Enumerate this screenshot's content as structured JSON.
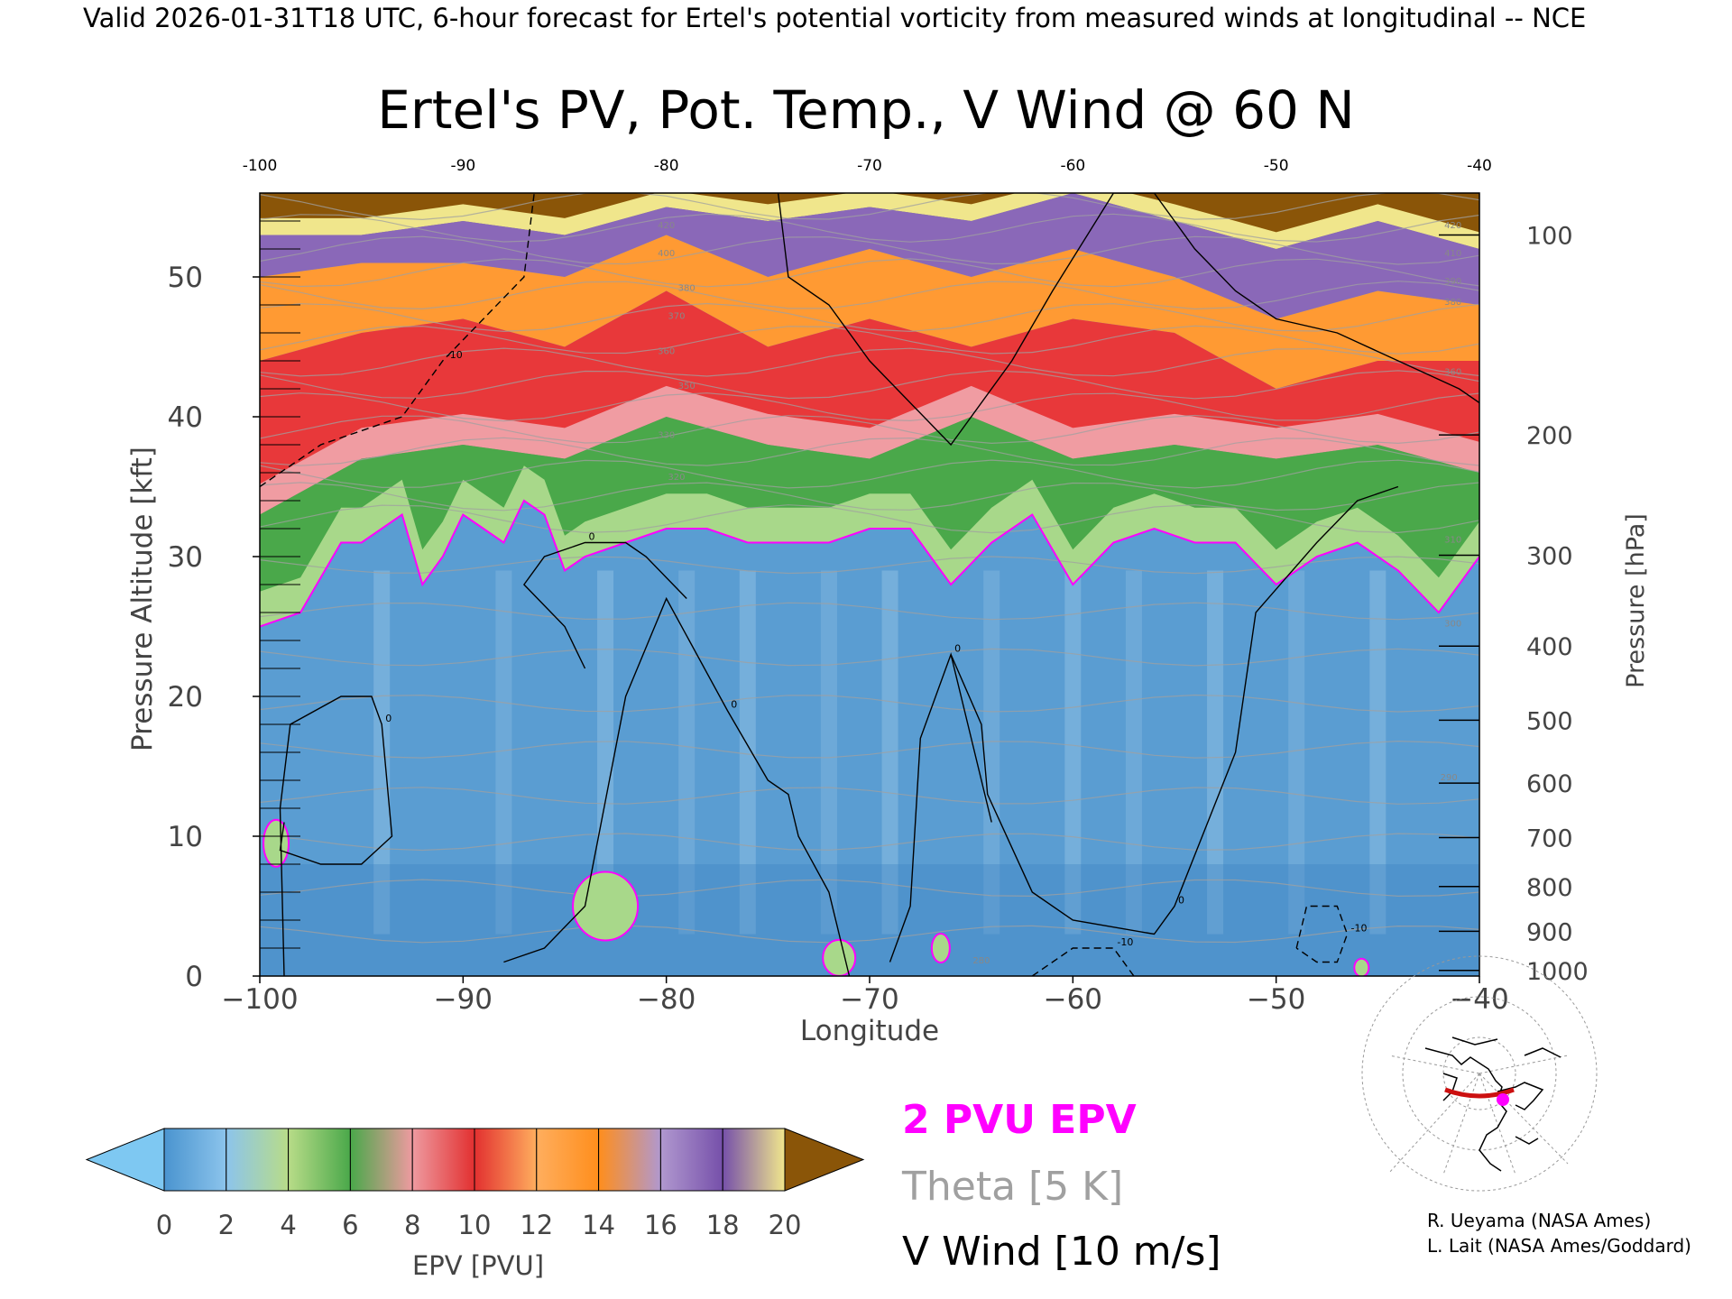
{
  "header_text": "Valid 2026-01-31T18 UTC, 6-hour forecast for Ertel's potential vorticity from measured winds at longitudinal -- NCE",
  "chart_data": {
    "type": "heatmap",
    "title": "Ertel's PV, Pot. Temp., V Wind @ 60 N",
    "xlabel": "Longitude",
    "ylabel": "Pressure Altitude [kft]",
    "y2label": "Pressure [hPa]",
    "xlim": [
      -100,
      -40
    ],
    "ylim": [
      0,
      56
    ],
    "x_ticks": [
      -100,
      -90,
      -80,
      -70,
      -60,
      -50,
      -40
    ],
    "top_x_ticks": [
      -100,
      -90,
      -80,
      -70,
      -60,
      -50,
      -40
    ],
    "y_ticks": [
      0,
      10,
      20,
      30,
      40,
      50
    ],
    "pressure_ticks": [
      {
        "hPa": "100",
        "kft": 53.0
      },
      {
        "hPa": "200",
        "kft": 38.7
      },
      {
        "hPa": "300",
        "kft": 30.1
      },
      {
        "hPa": "400",
        "kft": 23.6
      },
      {
        "hPa": "500",
        "kft": 18.3
      },
      {
        "hPa": "600",
        "kft": 13.8
      },
      {
        "hPa": "700",
        "kft": 9.9
      },
      {
        "hPa": "800",
        "kft": 6.4
      },
      {
        "hPa": "900",
        "kft": 3.2
      },
      {
        "hPa": "1000",
        "kft": 0.4
      }
    ],
    "colorbar": {
      "label": "EPV [PVU]",
      "ticks": [
        0,
        2,
        4,
        6,
        8,
        10,
        12,
        14,
        16,
        18,
        20
      ],
      "colors": [
        "#4a94cf",
        "#8cc4ec",
        "#b8dc88",
        "#4aa84a",
        "#ee9aa0",
        "#e23030",
        "#ffae5e",
        "#ff8e1c",
        "#b098cf",
        "#7650aa",
        "#f0e68c"
      ],
      "under_color": "#7ec8f2",
      "over_color": "#8a5508"
    },
    "legend": [
      {
        "label": "2 PVU EPV",
        "color": "#ff00ff"
      },
      {
        "label": "Theta [5 K]",
        "color": "#a0a0a0"
      },
      {
        "label": "V Wind [10 m/s]",
        "color": "#000000"
      }
    ],
    "tropopause_2pvu_kft": {
      "lon": [
        -100,
        -98,
        -96,
        -95,
        -94,
        -93,
        -92,
        -91,
        -90,
        -89,
        -88,
        -87,
        -86,
        -85,
        -84,
        -82,
        -80,
        -78,
        -76,
        -74,
        -72,
        -70,
        -68,
        -66,
        -64,
        -62,
        -60,
        -58,
        -56,
        -54,
        -52,
        -50,
        -48,
        -46,
        -44,
        -42,
        -40
      ],
      "alt": [
        25,
        26,
        31,
        31,
        32,
        33,
        28,
        30,
        33,
        32,
        31,
        34,
        33,
        29,
        30,
        31,
        32,
        32,
        31,
        31,
        31,
        32,
        32,
        28,
        31,
        33,
        28,
        31,
        32,
        31,
        31,
        28,
        30,
        31,
        29,
        26,
        30
      ]
    },
    "epv_bands_kft": {
      "lon": [
        -100,
        -95,
        -90,
        -85,
        -80,
        -75,
        -70,
        -65,
        -60,
        -55,
        -50,
        -45,
        -40
      ],
      "green_top": [
        33,
        37,
        38,
        37,
        40,
        38,
        37,
        40,
        37,
        38,
        37,
        38,
        36
      ],
      "red_top": [
        44,
        46,
        47,
        45,
        49,
        45,
        47,
        45,
        47,
        46,
        42,
        44,
        44
      ],
      "orange_top": [
        50,
        51,
        51,
        50,
        53,
        50,
        52,
        50,
        52,
        50,
        47,
        49,
        48
      ],
      "purple_top": [
        53,
        53,
        54,
        53,
        55,
        54,
        55,
        54,
        56,
        54,
        52,
        54,
        52
      ]
    },
    "v_wind_contours": [
      {
        "label": "0",
        "style": "solid",
        "lon": [
          -98.8,
          -99,
          -98.5,
          -96,
          -94.5,
          -94,
          -93.5,
          -95,
          -97,
          -99,
          -98.8
        ],
        "alt": [
          0,
          12,
          18,
          20,
          20,
          18,
          10,
          8,
          8,
          9,
          11
        ]
      },
      {
        "label": "0",
        "style": "solid",
        "lon": [
          -88,
          -86,
          -84,
          -82,
          -80,
          -77,
          -75,
          -74,
          -73.5,
          -72,
          -71
        ],
        "alt": [
          1,
          2,
          5,
          20,
          27,
          19,
          14,
          13,
          10,
          6,
          0
        ]
      },
      {
        "label": "0",
        "style": "solid",
        "lon": [
          -84,
          -85,
          -87,
          -86,
          -84,
          -82,
          -81,
          -79
        ],
        "alt": [
          22,
          25,
          28,
          30,
          31,
          31,
          30,
          27
        ]
      },
      {
        "label": "0",
        "style": "solid",
        "lon": [
          -66,
          -64.5,
          -64.2,
          -62,
          -60,
          -56,
          -55,
          -52,
          -51,
          -48,
          -46,
          -44
        ],
        "alt": [
          23,
          18,
          13,
          6,
          4,
          3,
          5,
          16,
          26,
          31,
          34,
          35
        ]
      },
      {
        "label": "0",
        "style": "solid",
        "lon": [
          -69,
          -68,
          -67.5,
          -66,
          -65.5,
          -64
        ],
        "alt": [
          1,
          5,
          17,
          23,
          20,
          11
        ]
      },
      {
        "label": "-10",
        "style": "dashed",
        "lon": [
          -100,
          -97,
          -95,
          -93,
          -91,
          -89,
          -87,
          -86.5
        ],
        "alt": [
          35,
          38,
          39,
          40,
          44,
          47,
          50,
          56
        ]
      },
      {
        "label": "-10",
        "style": "dashed",
        "lon": [
          -62,
          -60,
          -58,
          -57
        ],
        "alt": [
          0,
          2,
          2,
          0
        ]
      },
      {
        "label": "-10",
        "style": "dashed",
        "lon": [
          -49,
          -48.5,
          -47,
          -46.5,
          -47,
          -48,
          -49
        ],
        "alt": [
          2,
          5,
          5,
          3,
          1,
          1,
          2
        ]
      },
      {
        "label": "0",
        "style": "solid",
        "lon": [
          -74.5,
          -74,
          -72,
          -70,
          -66,
          -63,
          -61,
          -58,
          -56,
          -54,
          -52,
          -50,
          -47,
          -44,
          -41,
          -40
        ],
        "alt": [
          56,
          50,
          48,
          44,
          38,
          44,
          49,
          56,
          56,
          52,
          49,
          47,
          46,
          44,
          42,
          41
        ]
      }
    ],
    "theta_labels": [
      {
        "text": "420",
        "lon": -80,
        "kft": 53.5
      },
      {
        "text": "400",
        "lon": -80,
        "kft": 51.5
      },
      {
        "text": "380",
        "lon": -79,
        "kft": 49
      },
      {
        "text": "370",
        "lon": -79.5,
        "kft": 47
      },
      {
        "text": "360",
        "lon": -80,
        "kft": 44.5
      },
      {
        "text": "350",
        "lon": -79,
        "kft": 42
      },
      {
        "text": "330",
        "lon": -80,
        "kft": 38.5
      },
      {
        "text": "320",
        "lon": -79.5,
        "kft": 35.5
      },
      {
        "text": "420",
        "lon": -41.3,
        "kft": 53.5
      },
      {
        "text": "410",
        "lon": -41.3,
        "kft": 51.5
      },
      {
        "text": "390",
        "lon": -41.3,
        "kft": 49.5
      },
      {
        "text": "380",
        "lon": -41.3,
        "kft": 48
      },
      {
        "text": "360",
        "lon": -41.3,
        "kft": 43
      },
      {
        "text": "310",
        "lon": -41.3,
        "kft": 31
      },
      {
        "text": "300",
        "lon": -41.3,
        "kft": 25
      },
      {
        "text": "290",
        "lon": -41.5,
        "kft": 14
      },
      {
        "text": "280",
        "lon": -64.5,
        "kft": 0.9
      }
    ]
  },
  "inset_map_caption": "",
  "credits": [
    "R. Ueyama (NASA Ames)",
    "L. Lait (NASA Ames/Goddard)"
  ]
}
